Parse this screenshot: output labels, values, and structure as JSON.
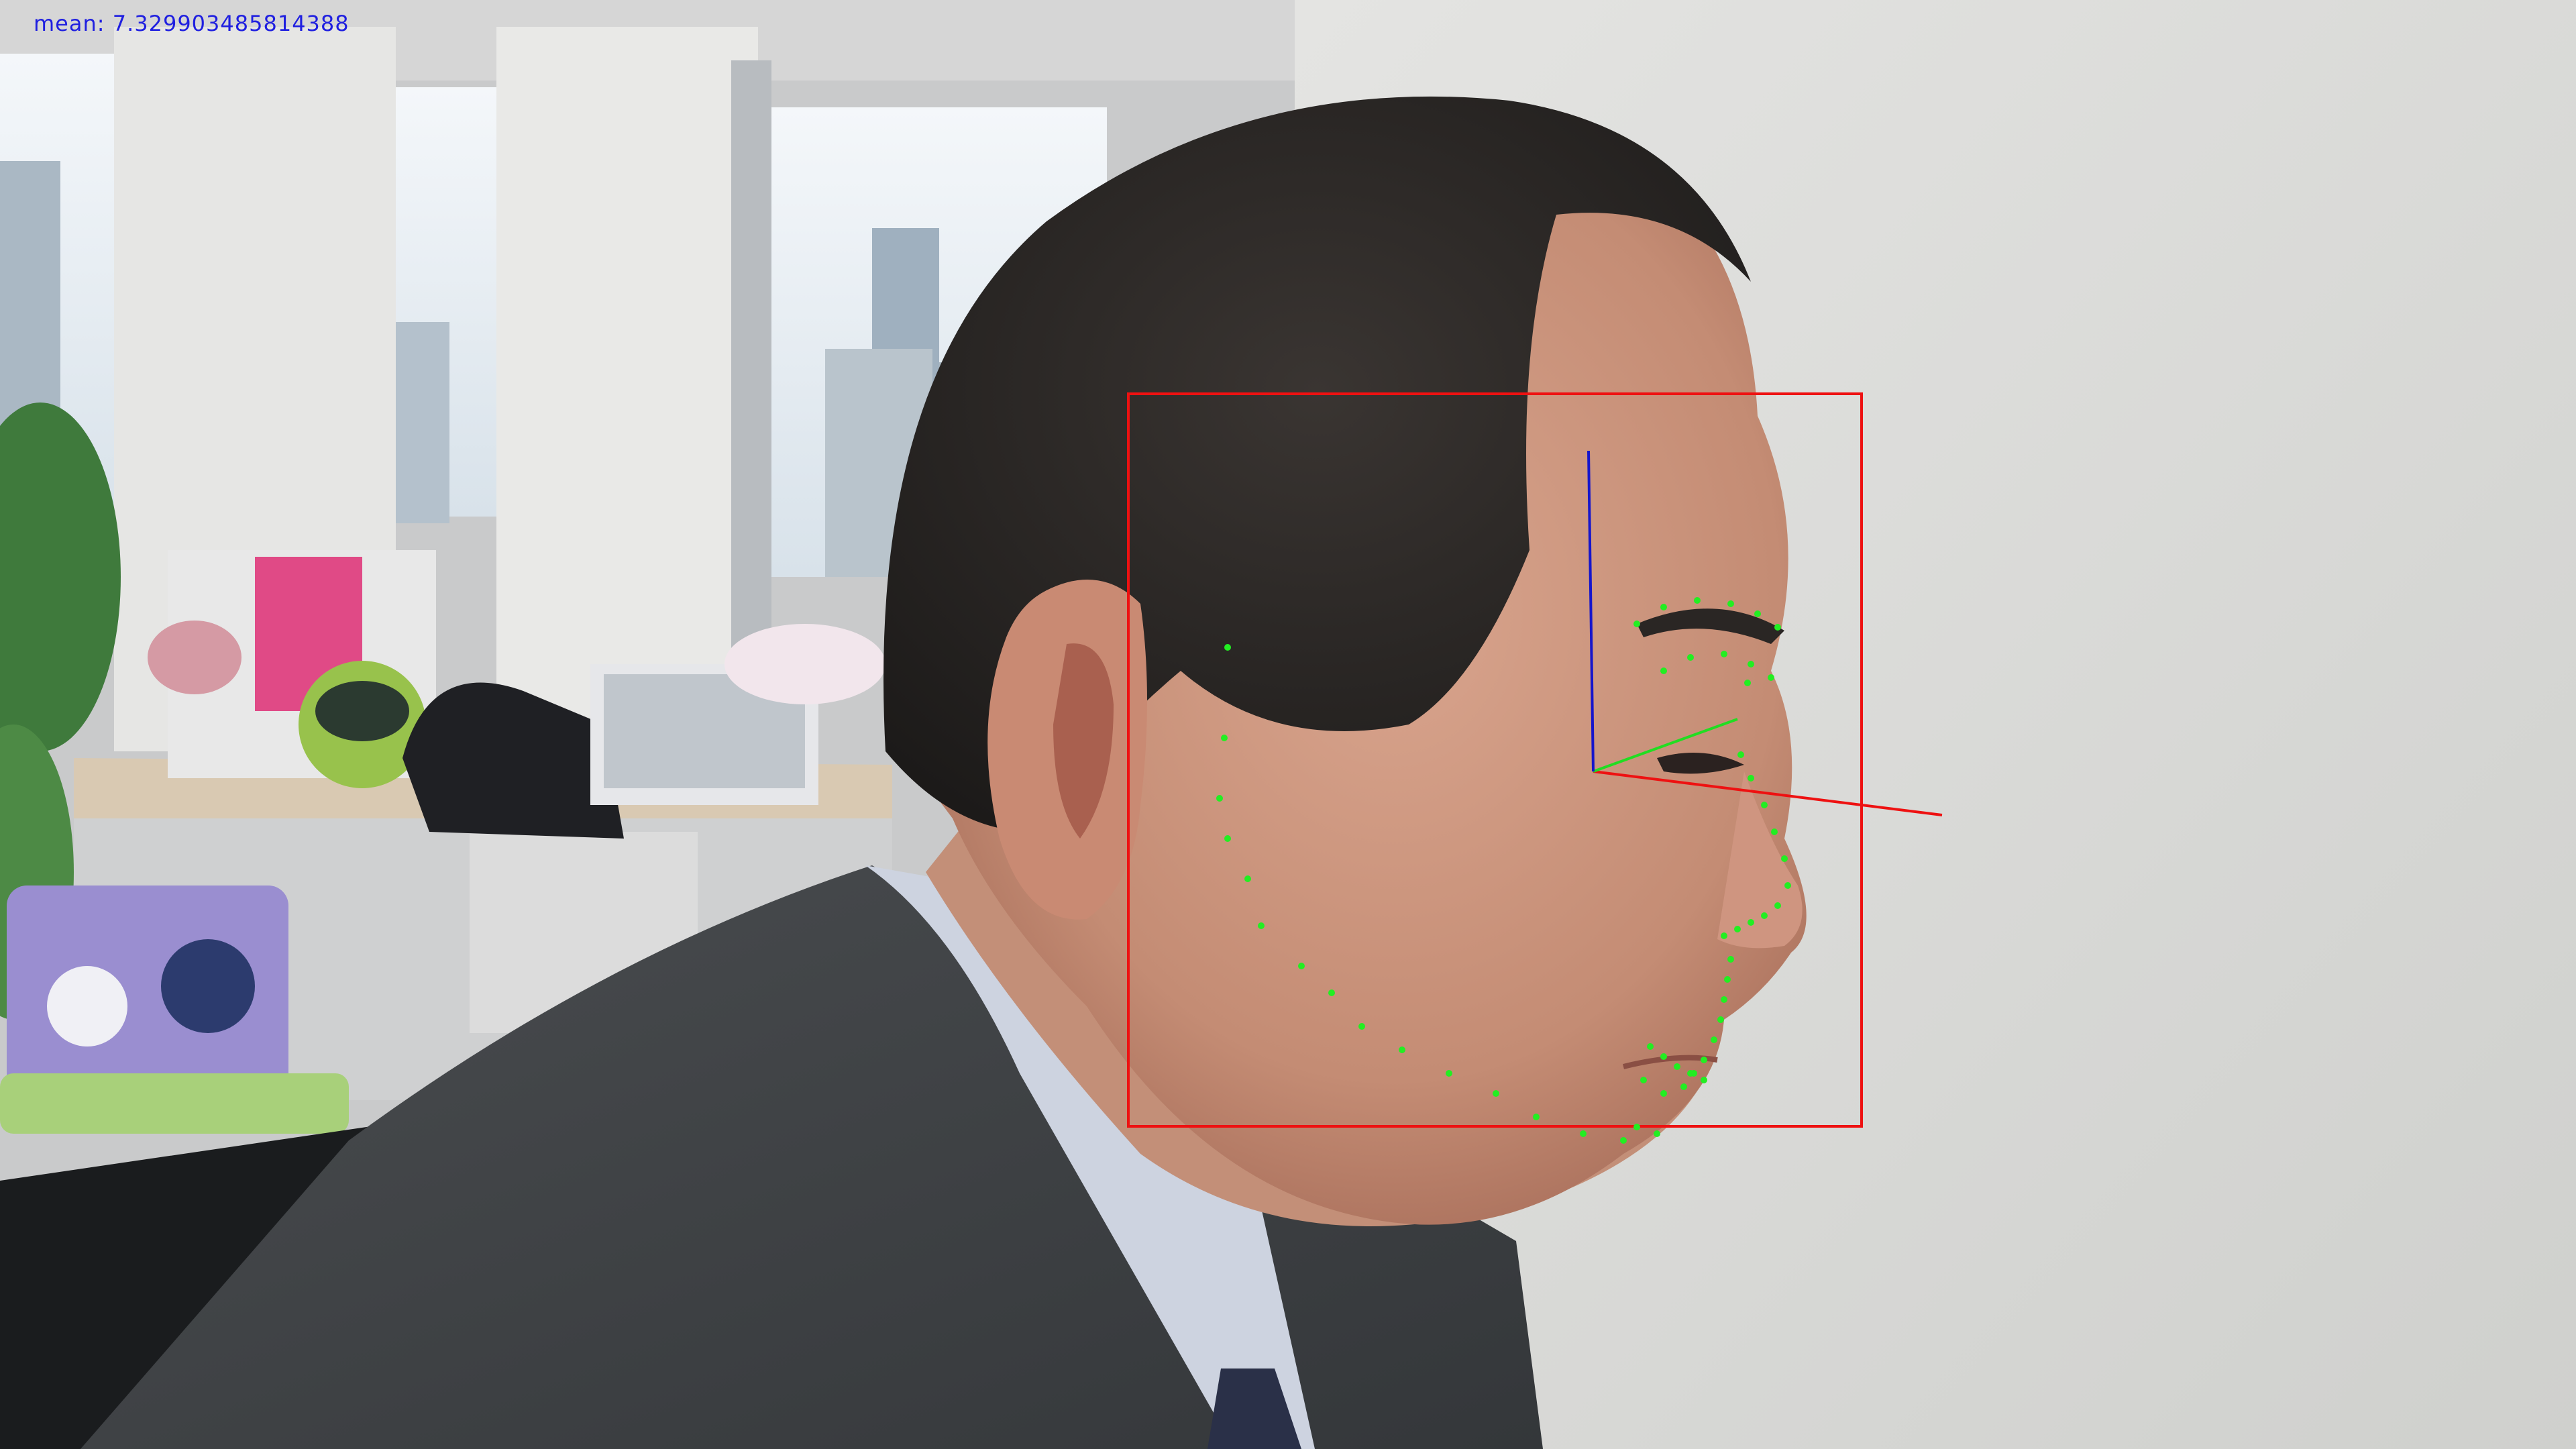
{
  "overlay": {
    "mean_text": "mean: 7.329903485814388",
    "colors": {
      "text": "#1f1fe0",
      "face_box": "#ee1111",
      "axis_x": "#ee1111",
      "axis_y": "#22dd22",
      "axis_z": "#1515cc",
      "landmarks": "#22ee22"
    }
  }
}
